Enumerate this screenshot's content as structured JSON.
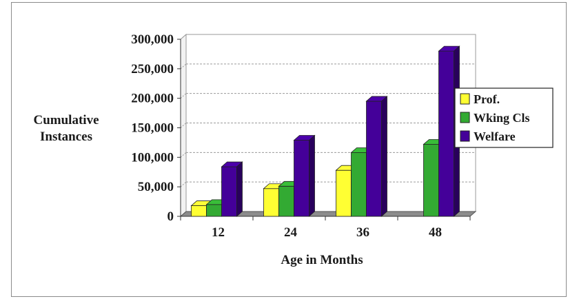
{
  "chart_data": {
    "type": "bar",
    "title": "",
    "xlabel": "Age in Months",
    "ylabel_lines": [
      "Cumulative",
      "Instances"
    ],
    "categories": [
      "12",
      "24",
      "36",
      "48"
    ],
    "yticks": [
      "0",
      "50,000",
      "100,000",
      "150,000",
      "200,000",
      "250,000",
      "300,000"
    ],
    "ylim": [
      0,
      300000
    ],
    "grid": true,
    "legend_position": "right",
    "series": [
      {
        "name": "Prof.",
        "color": "#ffff33",
        "values": [
          18000,
          47000,
          78000,
          null
        ]
      },
      {
        "name": "Wking Cls",
        "color": "#33aa33",
        "values": [
          20000,
          51000,
          108000,
          122000
        ]
      },
      {
        "name": "Welfare",
        "color": "#440099",
        "values": [
          84000,
          129000,
          195000,
          280000
        ]
      }
    ]
  }
}
